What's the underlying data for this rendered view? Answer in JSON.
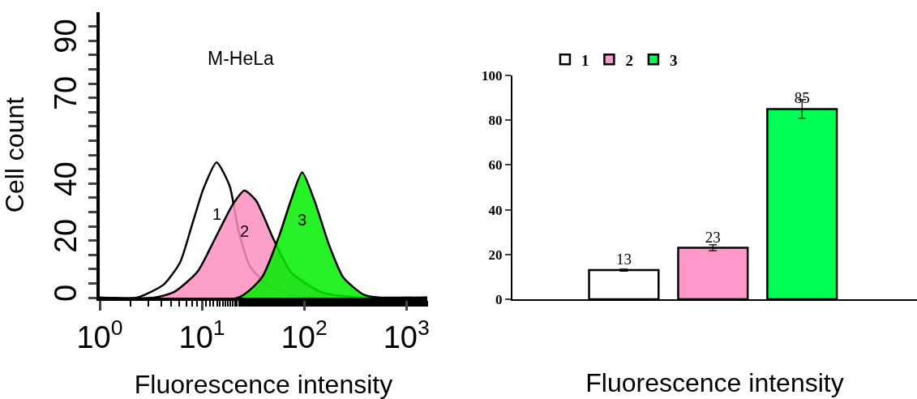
{
  "chart_data": [
    {
      "type": "area",
      "title": "M-HeLa",
      "xlabel": "Fluorescence intensity",
      "ylabel": "Cell count",
      "log": "x",
      "xlim": [
        1,
        1600
      ],
      "xticks": [
        {
          "value": 1,
          "label": "10$^{0}$"
        },
        {
          "value": 10,
          "label": "10$^{1}$"
        },
        {
          "value": 100,
          "label": "10$^{2}$"
        },
        {
          "value": 1000,
          "label": "10$^{3}$"
        }
      ],
      "ylim": [
        0,
        100
      ],
      "yticks": [
        0,
        {
          "value": 5,
          "label": null
        },
        {
          "value": 10,
          "label": null
        },
        {
          "value": 15,
          "label": null
        },
        20,
        {
          "value": 25,
          "label": null
        },
        {
          "value": 30,
          "label": null
        },
        {
          "value": 35,
          "label": null
        },
        40,
        {
          "value": 45,
          "label": null
        },
        {
          "value": 50,
          "label": null
        },
        {
          "value": 55,
          "label": null
        },
        {
          "value": 60,
          "label": null
        },
        {
          "value": 65,
          "label": null
        },
        70,
        {
          "value": 75,
          "label": null
        },
        {
          "value": 80,
          "label": null
        },
        {
          "value": 85,
          "label": null
        },
        90,
        {
          "value": 95,
          "label": null
        }
      ],
      "legend": false,
      "marker": "none",
      "line_style": "solid",
      "series": [
        {
          "name": "1",
          "color": "#ffffff",
          "x": [
            1,
            2.3,
            4.2,
            6.1,
            7.9,
            10.3,
            13.9,
            18.7,
            22.7,
            29.5,
            43.9,
            74,
            144,
            1600
          ],
          "values": [
            0,
            0,
            4.5,
            12.3,
            24.8,
            38,
            47.4,
            39,
            23.7,
            11,
            4.5,
            1,
            0,
            0
          ]
        },
        {
          "name": "2",
          "color": "#fc8ec0",
          "x": [
            1,
            3.4,
            5.35,
            9.0,
            13.4,
            20,
            26,
            33.8,
            50,
            74,
            144,
            277,
            1600
          ],
          "values": [
            0,
            0,
            2,
            9,
            20.6,
            32.6,
            37.5,
            34,
            20.6,
            9,
            2,
            0.3,
            0
          ]
        },
        {
          "name": "3",
          "color": "#00ee00",
          "x": [
            1,
            22.7,
            38.5,
            57,
            74,
            95.5,
            126,
            175,
            242,
            383,
            537,
            1600
          ],
          "values": [
            0,
            0,
            7,
            21.7,
            34,
            43.9,
            34,
            18.5,
            7,
            1,
            0,
            0
          ]
        }
      ]
    },
    {
      "type": "bar",
      "xlabel": "Fluorescence intensity",
      "categories": [
        null,
        null,
        null
      ],
      "ylim": [
        0,
        100
      ],
      "yticks": [
        0,
        20,
        40,
        60,
        80,
        100
      ],
      "legend": "top left",
      "data_labels": true,
      "series": [
        {
          "name": "1",
          "color": "#ffffff",
          "values": [
            13,
            null,
            null
          ],
          "errors": [
            0.5,
            null,
            null
          ]
        },
        {
          "name": "2",
          "color": "#ff99cc",
          "values": [
            null,
            23,
            null
          ],
          "errors": [
            null,
            1.3,
            null
          ]
        },
        {
          "name": "3",
          "color": "#00ff55",
          "values": [
            null,
            null,
            85
          ],
          "errors": [
            null,
            null,
            4.2
          ]
        }
      ]
    }
  ]
}
